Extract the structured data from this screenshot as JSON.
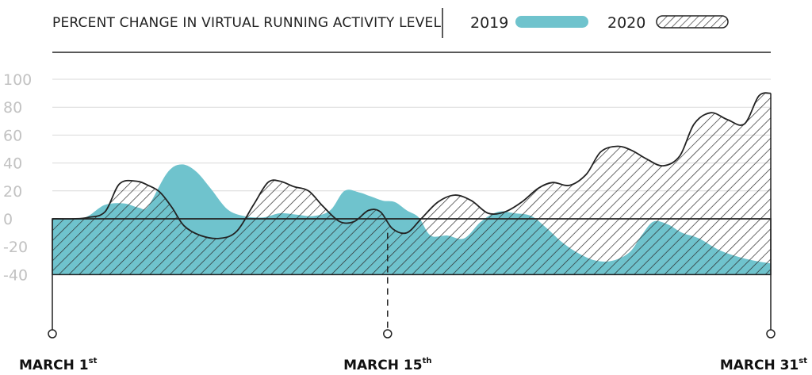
{
  "chart_data": {
    "type": "area",
    "title": "PERCENT CHANGE IN VIRTUAL RUNNING ACTIVITY LEVEL",
    "ylim": [
      -40,
      100
    ],
    "y_ticks": [
      "100",
      "80",
      "60",
      "40",
      "20",
      "0",
      "-20",
      "-40"
    ],
    "x_range": [
      1,
      31
    ],
    "x_ticks": [
      {
        "x": 1,
        "label": "MARCH 1",
        "sup": "st"
      },
      {
        "x": 15,
        "label": "MARCH 15",
        "sup": "th"
      },
      {
        "x": 31,
        "label": "MARCH 31",
        "sup": "st"
      }
    ],
    "grid": true,
    "legend_position": "top-right",
    "series": [
      {
        "name": "2019",
        "color": "#6fc3cd",
        "fill": "solid",
        "x": [
          1,
          2,
          2.5,
          3.2,
          4,
          4.6,
          5,
          5.8,
          6.4,
          7,
          7.6,
          8.3,
          9,
          9.8,
          10.5,
          11.2,
          11.9,
          12.6,
          13.2,
          13.8,
          14.3,
          14.8,
          15.3,
          15.8,
          16.3,
          16.8,
          17.5,
          18.2,
          18.9,
          19.6,
          20.3,
          21,
          21.6,
          22.3,
          23,
          23.7,
          24.4,
          25.1,
          25.6,
          26.1,
          26.7,
          27.3,
          28,
          28.8,
          29.6,
          30.3,
          31
        ],
        "values": [
          0,
          0,
          2,
          10,
          11,
          8,
          9,
          33,
          39,
          34,
          22,
          7,
          2,
          1,
          4,
          3,
          2,
          6,
          20,
          19,
          16,
          13,
          12,
          6,
          1,
          -12,
          -12,
          -14,
          -2,
          5,
          4,
          2,
          -6,
          -17,
          -25,
          -30,
          -30,
          -24,
          -12,
          -2,
          -4,
          -10,
          -14,
          -22,
          -27,
          -30,
          -32
        ]
      },
      {
        "name": "2020",
        "color": "#333333",
        "fill": "hatched",
        "x": [
          1,
          1.9,
          2.5,
          3.2,
          3.8,
          4.5,
          5,
          5.5,
          6,
          6.5,
          7.2,
          8,
          8.7,
          9.4,
          10,
          10.5,
          11.1,
          11.7,
          12.3,
          13,
          13.6,
          14.2,
          14.7,
          15.2,
          15.8,
          16.4,
          17.1,
          17.8,
          18.5,
          19.2,
          19.9,
          20.6,
          21.3,
          21.9,
          22.6,
          23.3,
          23.9,
          24.6,
          25.2,
          25.8,
          26.5,
          27.2,
          27.8,
          28.5,
          29.2,
          29.9,
          30.5,
          31
        ],
        "values": [
          0,
          0,
          1,
          5,
          25,
          27,
          24,
          19,
          8,
          -5,
          -12,
          -14,
          -9,
          10,
          26,
          27,
          23,
          20,
          9,
          -2,
          -2,
          6,
          5,
          -7,
          -10,
          0,
          12,
          17,
          13,
          4,
          5,
          12,
          22,
          26,
          24,
          32,
          48,
          52,
          49,
          43,
          38,
          45,
          68,
          76,
          71,
          68,
          88,
          90
        ]
      }
    ],
    "annotations": [
      {
        "type": "dashed-vertical-line",
        "x": 15
      }
    ]
  }
}
